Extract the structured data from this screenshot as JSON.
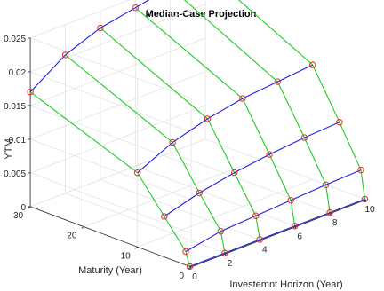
{
  "chart_data": {
    "type": "surface3d-wireframe",
    "title": "Median-Case Projection",
    "xlabel": "Investemnt Horizon (Year)",
    "ylabel": "Maturity (Year)",
    "zlabel": "YTM",
    "xlim": [
      0,
      10
    ],
    "ylim": [
      0,
      30
    ],
    "zlim": [
      0,
      0.025
    ],
    "x_ticks": [
      "0",
      "2",
      "4",
      "6",
      "8",
      "10"
    ],
    "y_ticks": [
      "0",
      "10",
      "20",
      "30"
    ],
    "z_ticks": [
      "0",
      "0.005",
      "0.01",
      "0.015",
      "0.02",
      "0.025"
    ],
    "grid": true,
    "horizon": [
      0,
      2,
      4,
      6,
      8,
      10
    ],
    "maturities": [
      0.25,
      1,
      5,
      10,
      30
    ],
    "ytm": [
      [
        0.0,
        0.0,
        0.0,
        0.0,
        0.0,
        0.0
      ],
      [
        0.002,
        0.003,
        0.0033,
        0.0036,
        0.0039,
        0.0041
      ],
      [
        0.006,
        0.0075,
        0.0085,
        0.0092,
        0.0097,
        0.01
      ],
      [
        0.011,
        0.0135,
        0.015,
        0.016,
        0.0165,
        0.017
      ],
      [
        0.017,
        0.0205,
        0.0225,
        0.0235,
        0.0245,
        0.025
      ]
    ],
    "colors": {
      "horizon_lines": "#1f1fdc",
      "maturity_lines": "#22cc22",
      "markers": "#e03030"
    }
  }
}
